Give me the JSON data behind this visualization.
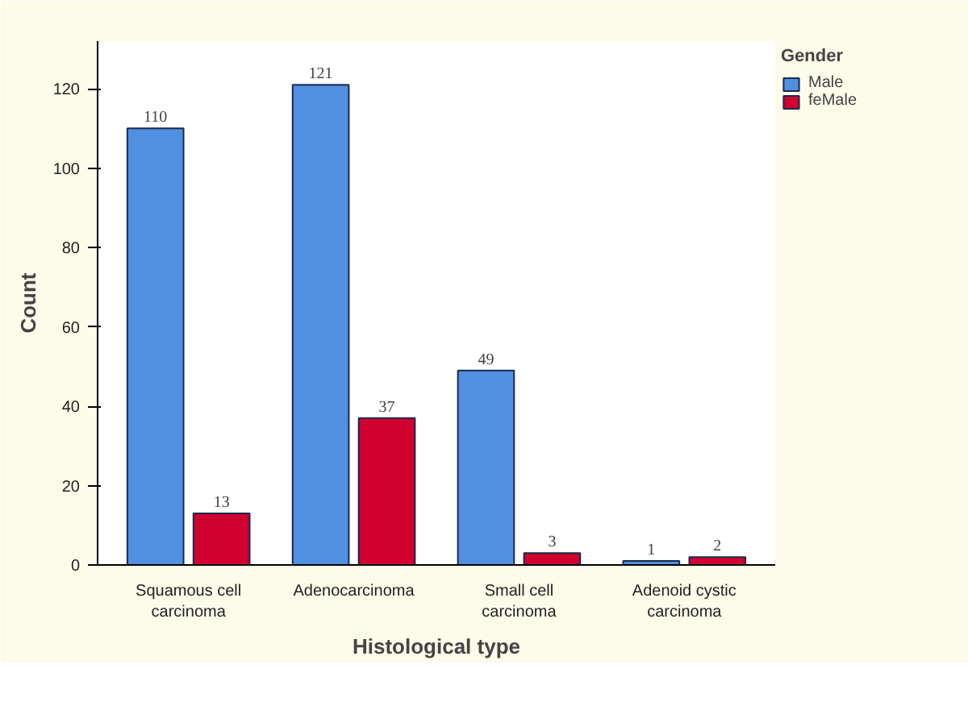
{
  "chart_data": {
    "type": "bar",
    "xlabel": "Histological type",
    "ylabel": "Count",
    "legend_title": "Gender",
    "categories": [
      "Squamous cell carcinoma",
      "Adenocarcinoma",
      "Small cell carcinoma",
      "Adenoid cystic carcinoma"
    ],
    "series": [
      {
        "name": "Male",
        "color": "#4f90e0",
        "values": [
          110,
          121,
          49,
          1
        ]
      },
      {
        "name": "feMale",
        "color": "#d0002f",
        "values": [
          13,
          37,
          3,
          2
        ]
      }
    ],
    "ylim": [
      0,
      132
    ],
    "yticks": [
      0,
      20,
      40,
      60,
      80,
      100,
      120
    ],
    "data_labels": true,
    "legend": "top right",
    "grid": false
  }
}
